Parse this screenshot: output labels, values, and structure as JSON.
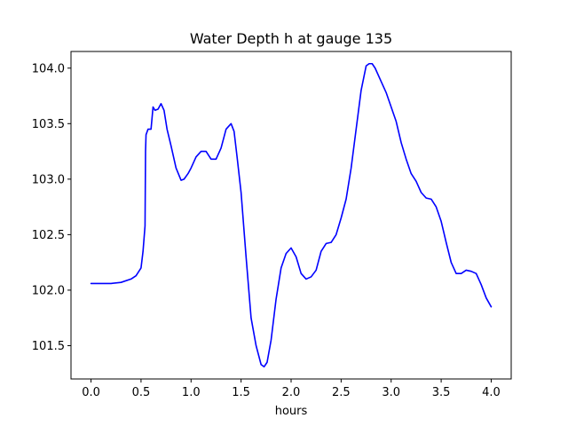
{
  "chart_data": {
    "type": "line",
    "title": "Water Depth h at gauge 135",
    "xlabel": "hours",
    "ylabel": "",
    "xlim": [
      -0.2,
      4.2
    ],
    "ylim": [
      101.2,
      104.15
    ],
    "xticks": [
      0.0,
      0.5,
      1.0,
      1.5,
      2.0,
      2.5,
      3.0,
      3.5,
      4.0
    ],
    "xtick_labels": [
      "0.0",
      "0.5",
      "1.0",
      "1.5",
      "2.0",
      "2.5",
      "3.0",
      "3.5",
      "4.0"
    ],
    "yticks": [
      101.5,
      102.0,
      102.5,
      103.0,
      103.5,
      104.0
    ],
    "ytick_labels": [
      "101.5",
      "102.0",
      "102.5",
      "103.0",
      "103.5",
      "104.0"
    ],
    "grid": false,
    "series": [
      {
        "color": "#0000ff",
        "x": [
          0.0,
          0.1,
          0.2,
          0.3,
          0.4,
          0.45,
          0.5,
          0.52,
          0.54,
          0.545,
          0.55,
          0.57,
          0.6,
          0.62,
          0.64,
          0.67,
          0.7,
          0.73,
          0.76,
          0.8,
          0.85,
          0.9,
          0.93,
          0.97,
          1.0,
          1.05,
          1.1,
          1.15,
          1.2,
          1.25,
          1.3,
          1.35,
          1.4,
          1.43,
          1.46,
          1.5,
          1.55,
          1.6,
          1.65,
          1.7,
          1.73,
          1.76,
          1.8,
          1.85,
          1.9,
          1.95,
          2.0,
          2.05,
          2.1,
          2.15,
          2.2,
          2.25,
          2.3,
          2.35,
          2.4,
          2.45,
          2.5,
          2.55,
          2.6,
          2.65,
          2.7,
          2.75,
          2.78,
          2.81,
          2.84,
          2.9,
          2.95,
          3.0,
          3.05,
          3.1,
          3.15,
          3.2,
          3.25,
          3.3,
          3.35,
          3.4,
          3.45,
          3.5,
          3.55,
          3.6,
          3.65,
          3.7,
          3.75,
          3.8,
          3.85,
          3.9,
          3.95,
          4.0
        ],
        "y": [
          102.06,
          102.06,
          102.06,
          102.07,
          102.1,
          102.13,
          102.2,
          102.35,
          102.58,
          103.25,
          103.4,
          103.45,
          103.45,
          103.65,
          103.62,
          103.63,
          103.68,
          103.62,
          103.45,
          103.3,
          103.1,
          102.99,
          103.0,
          103.05,
          103.1,
          103.2,
          103.25,
          103.25,
          103.18,
          103.18,
          103.28,
          103.45,
          103.5,
          103.43,
          103.2,
          102.88,
          102.3,
          101.75,
          101.5,
          101.33,
          101.31,
          101.35,
          101.55,
          101.92,
          102.2,
          102.33,
          102.38,
          102.3,
          102.15,
          102.1,
          102.12,
          102.18,
          102.35,
          102.42,
          102.43,
          102.5,
          102.65,
          102.82,
          103.1,
          103.45,
          103.8,
          104.02,
          104.04,
          104.04,
          104.0,
          103.88,
          103.78,
          103.65,
          103.52,
          103.33,
          103.18,
          103.05,
          102.98,
          102.88,
          102.83,
          102.82,
          102.75,
          102.62,
          102.43,
          102.25,
          102.15,
          102.15,
          102.18,
          102.17,
          102.15,
          102.05,
          101.93,
          101.85
        ]
      }
    ]
  }
}
